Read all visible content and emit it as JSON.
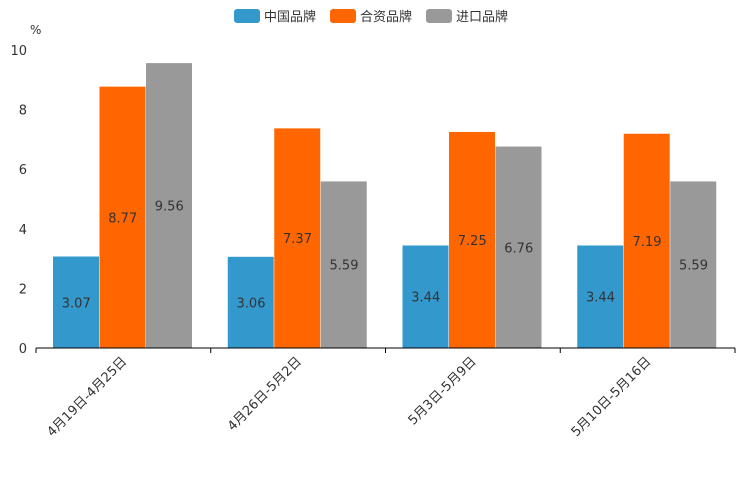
{
  "chart_data": {
    "type": "bar",
    "title": "",
    "xlabel": "",
    "ylabel": "",
    "y_unit": "%",
    "ylim": [
      0,
      10
    ],
    "yticks": [
      0,
      2,
      4,
      6,
      8,
      10
    ],
    "legend_position": "top-center",
    "categories": [
      "4月19日-4月25日",
      "4月26日-5月2日",
      "5月3日-5月9日",
      "5月10日-5月16日"
    ],
    "series": [
      {
        "name": "中国品牌",
        "color": "#3399cc",
        "values": [
          3.07,
          3.06,
          3.44,
          3.44
        ]
      },
      {
        "name": "合资品牌",
        "color": "#ff6600",
        "values": [
          8.77,
          7.37,
          7.25,
          7.19
        ]
      },
      {
        "name": "进口品牌",
        "color": "#999999",
        "values": [
          9.56,
          5.59,
          6.76,
          5.59
        ]
      }
    ]
  }
}
